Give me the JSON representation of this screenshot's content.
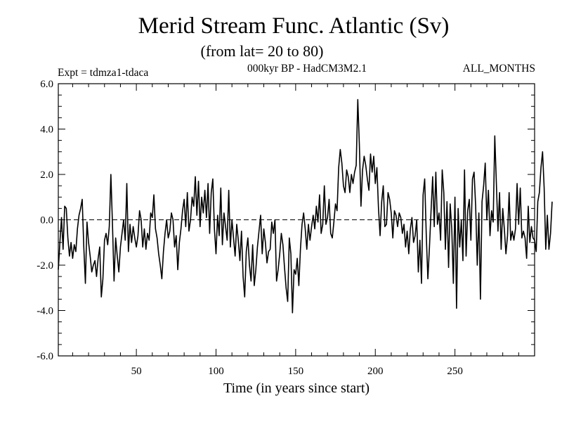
{
  "chart_data": {
    "type": "line",
    "title": "Merid Stream Func. Atlantic (Sv)",
    "subtitle": "(from lat= 20 to 80)",
    "experiment": "Expt = tdmza1-tdaca",
    "model": "000kyr BP - HadCM3M2.1",
    "period": "ALL_MONTHS",
    "xlabel": "Time (in years since start)",
    "ylabel": "",
    "xlim": [
      1,
      300
    ],
    "ylim": [
      -6,
      6
    ],
    "x_ticks": [
      50,
      100,
      150,
      200,
      250
    ],
    "x_tick_labels": [
      "50",
      "100",
      "150",
      "200",
      "250"
    ],
    "y_ticks": [
      -6,
      -4,
      -2,
      0,
      2,
      4,
      6
    ],
    "y_tick_labels": [
      "-6.0",
      "-4.0",
      "-2.0",
      "0.0",
      "2.0",
      "4.0",
      "6.0"
    ],
    "reference_line": 0,
    "series": [
      {
        "name": "Merid Stream Func. Atlantic",
        "x_start": 1,
        "x_step": 1,
        "values": [
          -2.2,
          -1.0,
          0.1,
          -1.3,
          0.6,
          0.5,
          -0.8,
          -1.6,
          -1.0,
          -1.7,
          -1.1,
          -1.4,
          -0.4,
          0.2,
          0.5,
          0.9,
          -1.2,
          -2.8,
          -0.1,
          -1.0,
          -1.6,
          -2.3,
          -2.0,
          -1.8,
          -2.5,
          -1.7,
          -1.2,
          -3.4,
          -2.6,
          -0.9,
          -0.6,
          -1.1,
          -0.3,
          2.0,
          -0.2,
          -2.7,
          -0.8,
          -1.6,
          -2.3,
          -1.2,
          -0.6,
          0.0,
          -0.9,
          1.6,
          -1.4,
          -0.2,
          -1.0,
          -0.3,
          -0.8,
          -1.2,
          -0.7,
          0.4,
          0.0,
          -1.2,
          -0.4,
          -1.3,
          -0.6,
          -0.9,
          0.3,
          0.1,
          1.1,
          -0.4,
          -0.8,
          -1.5,
          -2.0,
          -2.6,
          -1.4,
          -0.6,
          0.0,
          -0.8,
          -0.5,
          0.3,
          0.0,
          -1.2,
          -0.7,
          -2.2,
          -1.0,
          -0.4,
          0.4,
          0.9,
          -0.3,
          1.2,
          -0.5,
          0.0,
          1.0,
          0.6,
          1.9,
          0.2,
          1.7,
          -0.3,
          1.0,
          0.3,
          1.3,
          0.1,
          1.6,
          -0.6,
          1.2,
          1.8,
          -0.4,
          -1.5,
          0.2,
          -0.7,
          1.4,
          -1.1,
          0.3,
          -0.3,
          -0.9,
          1.3,
          -1.2,
          0.0,
          -0.8,
          -1.6,
          -0.2,
          -0.9,
          -1.8,
          -0.5,
          -2.5,
          -3.4,
          -1.4,
          -0.8,
          -2.0,
          -2.7,
          -1.1,
          -2.9,
          -2.2,
          -1.2,
          -0.5,
          0.2,
          -1.5,
          -0.4,
          -1.0,
          -1.9,
          -1.4,
          -1.3,
          -0.1,
          -0.6,
          0.0,
          -2.7,
          -2.2,
          -1.5,
          -0.6,
          -1.1,
          -2.1,
          -3.0,
          -3.6,
          -0.8,
          -1.5,
          -4.1,
          -2.2,
          -2.4,
          -1.7,
          -2.9,
          -1.3,
          -0.2,
          0.3,
          -0.4,
          -1.3,
          -0.2,
          -0.9,
          -0.3,
          0.2,
          -0.4,
          0.6,
          -0.1,
          1.1,
          -0.6,
          -0.2,
          1.5,
          -0.2,
          0.1,
          0.9,
          -0.6,
          -0.8,
          -0.1,
          0.7,
          0.4,
          2.3,
          3.1,
          2.5,
          1.5,
          1.2,
          2.2,
          1.9,
          1.2,
          2.0,
          1.6,
          2.1,
          2.4,
          5.3,
          3.3,
          0.6,
          2.2,
          2.8,
          2.4,
          1.8,
          1.3,
          2.9,
          2.1,
          2.8,
          1.6,
          2.3,
          0.5,
          -0.7,
          0.8,
          1.5,
          -0.3,
          -0.2,
          1.2,
          0.9,
          0.3,
          -0.8,
          0.4,
          0.2,
          -0.3,
          0.3,
          0.1,
          -0.6,
          -0.2,
          -1.2,
          -0.5,
          -1.5,
          -0.4,
          0.1,
          -1.0,
          -0.7,
          0.0,
          -2.3,
          -0.9,
          -2.8,
          1.1,
          1.8,
          -0.7,
          -2.6,
          -1.2,
          0.4,
          1.9,
          -0.3,
          2.1,
          -0.2,
          0.3,
          -0.9,
          2.2,
          1.2,
          -1.3,
          0.8,
          -2.1,
          0.7,
          -0.4,
          -2.8,
          1.0,
          -3.9,
          0.5,
          -1.2,
          0.0,
          -1.8,
          2.2,
          -1.6,
          0.4,
          0.9,
          -0.9,
          1.8,
          2.1,
          0.6,
          -2.0,
          0.3,
          -3.5,
          0.8,
          1.5,
          2.5,
          0.0,
          1.3,
          -0.7,
          0.4,
          -0.1,
          3.7,
          1.6,
          -0.5,
          1.2,
          -1.3,
          0.5,
          -0.4,
          -1.5,
          -0.7,
          1.2,
          -0.9,
          -0.5,
          -0.9,
          -0.4,
          1.6,
          -0.2,
          1.4,
          -0.8,
          -0.5,
          -0.8,
          -1.7,
          0.6,
          -1.0,
          -0.3,
          -0.8,
          -0.9,
          -1.4,
          0.8,
          1.2,
          2.3,
          3.0,
          1.4,
          -1.3,
          0.2,
          -1.3,
          -0.6,
          0.8
        ]
      }
    ]
  }
}
